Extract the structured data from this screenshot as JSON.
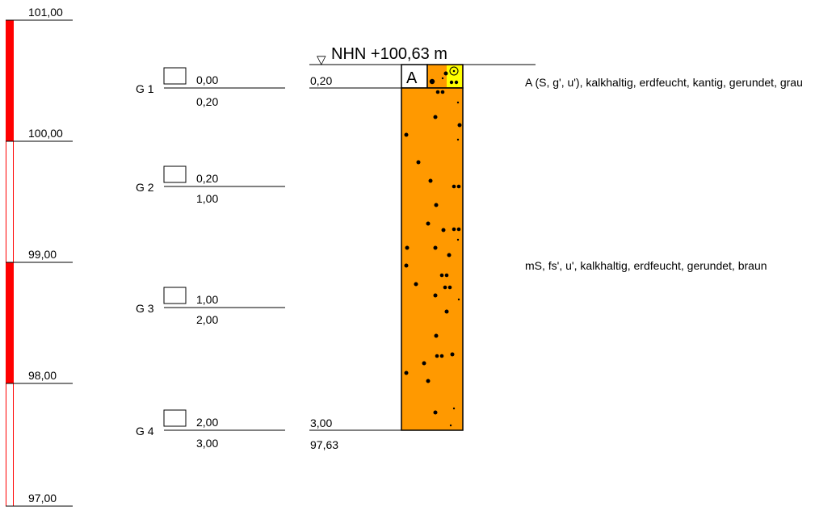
{
  "scale": {
    "labels": [
      "101,00",
      "100,00",
      "99,00",
      "98,00",
      "97,00"
    ],
    "values": [
      101.0,
      100.0,
      99.0,
      98.0,
      97.0
    ],
    "color": "#ff0000"
  },
  "header": {
    "triangle_glyph": "▽",
    "elevation_text": "NHN +100,63 m"
  },
  "samples": [
    {
      "name": "G 1",
      "top": "0,00",
      "bottom": "0,20"
    },
    {
      "name": "G 2",
      "top": "0,20",
      "bottom": "1,00"
    },
    {
      "name": "G 3",
      "top": "1,00",
      "bottom": "2,00"
    },
    {
      "name": "G 4",
      "top": "2,00",
      "bottom": "3,00"
    }
  ],
  "depth_labels": {
    "layer1_bottom": "0,20",
    "final_depth": "3,00",
    "final_elevation": "97,63"
  },
  "column": {
    "layer_code": "A",
    "fill_color": "#ff9900",
    "symbol_color": "#ffff00"
  },
  "layers": [
    {
      "description": "A (S, g', u'), kalkhaltig, erdfeucht, kantig, gerundet, grau"
    },
    {
      "description": "mS, fs', u', kalkhaltig, erdfeucht, gerundet, braun"
    }
  ]
}
